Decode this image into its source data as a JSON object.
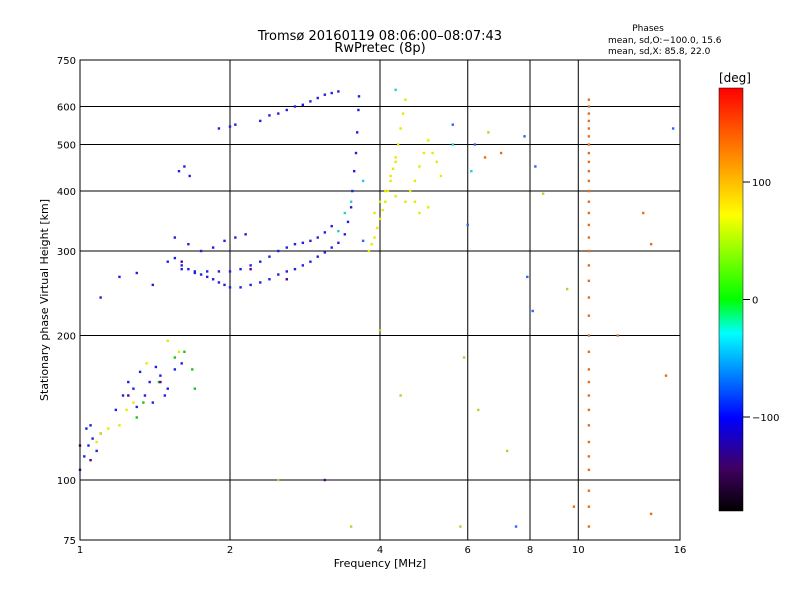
{
  "chart_data": {
    "type": "scatter",
    "title": "Tromsø 20160119 08:06:00–08:07:43",
    "subtitle": "RwPretec (8p)",
    "xlabel": "Frequency [MHz]",
    "ylabel": "Stationary phase Virtual Height [km]",
    "xscale": "log",
    "yscale": "log",
    "xlim": [
      1,
      16
    ],
    "ylim": [
      75,
      750
    ],
    "grid": true,
    "x_ticks": [
      1,
      2,
      4,
      6,
      8,
      10,
      16
    ],
    "y_ticks": [
      75,
      100,
      200,
      300,
      400,
      500,
      600,
      750
    ],
    "x_gridlines": [
      2,
      4,
      6,
      8,
      10
    ],
    "y_gridlines": [
      100,
      200,
      300,
      400,
      500,
      600
    ],
    "legend": {
      "heading": "Phases",
      "lines": [
        "mean, sd,O:−100.0, 15.6",
        "mean, sd,X:  85.8, 22.0"
      ],
      "placement": "top-right"
    },
    "colorbar": {
      "label": "[deg]",
      "range": [
        -180,
        180
      ],
      "ticks": [
        100,
        0,
        -100
      ],
      "colors": [
        "#ff0000",
        "#ff8000",
        "#ffff00",
        "#00ff00",
        "#00ffff",
        "#0000ff",
        "#400060",
        "#000000"
      ]
    },
    "series": [
      {
        "phase": -100,
        "color": "#2020e0",
        "points": [
          [
            1.0,
            105
          ],
          [
            1.02,
            112
          ],
          [
            1.04,
            118
          ],
          [
            1.06,
            122
          ],
          [
            1.08,
            115
          ],
          [
            1.1,
            125
          ],
          [
            1.03,
            128
          ],
          [
            1.05,
            130
          ],
          [
            1.18,
            140
          ],
          [
            1.22,
            150
          ],
          [
            1.25,
            160
          ],
          [
            1.28,
            155
          ],
          [
            1.32,
            168
          ],
          [
            1.35,
            150
          ],
          [
            1.38,
            160
          ],
          [
            1.42,
            172
          ],
          [
            1.45,
            165
          ],
          [
            1.5,
            155
          ],
          [
            1.55,
            170
          ],
          [
            1.6,
            175
          ],
          [
            1.3,
            142
          ],
          [
            1.4,
            145
          ],
          [
            1.48,
            150
          ],
          [
            1.5,
            285
          ],
          [
            1.55,
            290
          ],
          [
            1.6,
            280
          ],
          [
            1.65,
            275
          ],
          [
            1.7,
            270
          ],
          [
            1.75,
            268
          ],
          [
            1.8,
            265
          ],
          [
            1.85,
            262
          ],
          [
            1.9,
            258
          ],
          [
            1.95,
            255
          ],
          [
            2.0,
            252
          ],
          [
            2.1,
            252
          ],
          [
            2.2,
            255
          ],
          [
            2.3,
            258
          ],
          [
            2.4,
            262
          ],
          [
            2.5,
            268
          ],
          [
            2.6,
            272
          ],
          [
            2.7,
            275
          ],
          [
            2.8,
            280
          ],
          [
            2.9,
            285
          ],
          [
            3.0,
            292
          ],
          [
            3.1,
            298
          ],
          [
            3.2,
            305
          ],
          [
            3.3,
            312
          ],
          [
            3.4,
            325
          ],
          [
            3.45,
            345
          ],
          [
            3.5,
            370
          ],
          [
            3.52,
            400
          ],
          [
            3.55,
            440
          ],
          [
            3.58,
            480
          ],
          [
            3.6,
            530
          ],
          [
            3.62,
            590
          ],
          [
            3.63,
            630
          ],
          [
            1.55,
            320
          ],
          [
            1.65,
            310
          ],
          [
            1.75,
            300
          ],
          [
            1.85,
            305
          ],
          [
            1.95,
            315
          ],
          [
            2.05,
            320
          ],
          [
            2.15,
            325
          ],
          [
            1.6,
            275
          ],
          [
            1.7,
            272
          ],
          [
            1.8,
            272
          ],
          [
            1.9,
            272
          ],
          [
            2.0,
            272
          ],
          [
            2.1,
            275
          ],
          [
            2.2,
            280
          ],
          [
            2.3,
            285
          ],
          [
            2.4,
            292
          ],
          [
            2.5,
            300
          ],
          [
            2.6,
            305
          ],
          [
            2.7,
            310
          ],
          [
            2.8,
            312
          ],
          [
            2.9,
            315
          ],
          [
            3.0,
            320
          ],
          [
            3.1,
            328
          ],
          [
            3.2,
            338
          ],
          [
            2.3,
            560
          ],
          [
            2.4,
            575
          ],
          [
            2.5,
            580
          ],
          [
            2.6,
            590
          ],
          [
            2.7,
            600
          ],
          [
            2.8,
            605
          ],
          [
            2.9,
            615
          ],
          [
            3.0,
            625
          ],
          [
            3.1,
            635
          ],
          [
            3.2,
            640
          ],
          [
            3.3,
            645
          ],
          [
            1.9,
            540
          ],
          [
            2.0,
            545
          ],
          [
            2.05,
            550
          ],
          [
            1.58,
            440
          ],
          [
            1.62,
            450
          ],
          [
            1.66,
            430
          ],
          [
            1.2,
            265
          ],
          [
            1.3,
            270
          ],
          [
            1.4,
            255
          ],
          [
            1.1,
            240
          ]
        ]
      },
      {
        "phase": 100,
        "color": "#e8e800",
        "points": [
          [
            3.8,
            300
          ],
          [
            3.85,
            310
          ],
          [
            3.9,
            320
          ],
          [
            3.95,
            335
          ],
          [
            4.0,
            350
          ],
          [
            4.05,
            365
          ],
          [
            4.1,
            380
          ],
          [
            4.15,
            400
          ],
          [
            4.2,
            420
          ],
          [
            4.25,
            445
          ],
          [
            4.3,
            470
          ],
          [
            4.35,
            500
          ],
          [
            4.4,
            540
          ],
          [
            4.45,
            580
          ],
          [
            4.5,
            620
          ],
          [
            3.9,
            360
          ],
          [
            4.0,
            380
          ],
          [
            4.1,
            400
          ],
          [
            4.2,
            430
          ],
          [
            4.3,
            460
          ],
          [
            4.6,
            400
          ],
          [
            4.7,
            420
          ],
          [
            4.8,
            450
          ],
          [
            4.9,
            480
          ],
          [
            5.0,
            510
          ],
          [
            5.1,
            480
          ],
          [
            5.2,
            460
          ],
          [
            5.3,
            430
          ],
          [
            4.7,
            380
          ],
          [
            4.8,
            360
          ],
          [
            5.0,
            370
          ],
          [
            4.5,
            380
          ],
          [
            4.3,
            390
          ],
          [
            1.08,
            120
          ],
          [
            1.1,
            125
          ],
          [
            1.14,
            128
          ],
          [
            1.2,
            130
          ],
          [
            1.24,
            140
          ],
          [
            1.28,
            145
          ],
          [
            1.36,
            175
          ],
          [
            1.5,
            195
          ],
          [
            1.58,
            185
          ]
        ]
      },
      {
        "phase": 0,
        "color": "#20c020",
        "points": [
          [
            1.3,
            135
          ],
          [
            1.34,
            145
          ],
          [
            1.44,
            160
          ],
          [
            1.55,
            180
          ],
          [
            1.62,
            185
          ],
          [
            1.68,
            170
          ],
          [
            1.7,
            155
          ]
        ]
      },
      {
        "phase": 60,
        "color": "#20d0d0",
        "points": [
          [
            3.3,
            330
          ],
          [
            3.4,
            360
          ],
          [
            3.5,
            380
          ],
          [
            3.7,
            420
          ],
          [
            4.3,
            650
          ],
          [
            6.1,
            440
          ],
          [
            5.6,
            500
          ]
        ]
      },
      {
        "phase": 150,
        "color": "#e07020",
        "points": [
          [
            10.5,
            620
          ],
          [
            10.5,
            600
          ],
          [
            10.5,
            580
          ],
          [
            10.5,
            560
          ],
          [
            10.5,
            540
          ],
          [
            10.5,
            520
          ],
          [
            10.5,
            500
          ],
          [
            10.5,
            480
          ],
          [
            10.5,
            460
          ],
          [
            10.5,
            440
          ],
          [
            10.5,
            420
          ],
          [
            10.5,
            400
          ],
          [
            10.5,
            380
          ],
          [
            10.5,
            360
          ],
          [
            10.5,
            340
          ],
          [
            10.5,
            320
          ],
          [
            10.5,
            300
          ],
          [
            10.5,
            280
          ],
          [
            10.5,
            260
          ],
          [
            10.5,
            240
          ],
          [
            10.5,
            220
          ],
          [
            10.5,
            200
          ],
          [
            10.5,
            185
          ],
          [
            10.5,
            170
          ],
          [
            10.5,
            160
          ],
          [
            10.5,
            150
          ],
          [
            10.5,
            140
          ],
          [
            10.5,
            130
          ],
          [
            10.5,
            120
          ],
          [
            10.5,
            112
          ],
          [
            10.5,
            105
          ],
          [
            10.5,
            95
          ],
          [
            10.5,
            88
          ],
          [
            10.5,
            80
          ],
          [
            6.5,
            470
          ],
          [
            7.0,
            480
          ],
          [
            9.8,
            88
          ],
          [
            12.0,
            200
          ],
          [
            14.0,
            85
          ],
          [
            15.0,
            165
          ],
          [
            13.5,
            360
          ],
          [
            14.0,
            310
          ]
        ]
      },
      {
        "phase": -140,
        "color": "#600080",
        "points": [
          [
            1.0,
            118
          ],
          [
            1.05,
            110
          ],
          [
            1.25,
            150
          ],
          [
            1.45,
            160
          ],
          [
            1.6,
            285
          ],
          [
            2.2,
            275
          ],
          [
            2.6,
            262
          ],
          [
            3.1,
            100
          ]
        ]
      },
      {
        "phase": -80,
        "color": "#3060ff",
        "points": [
          [
            5.6,
            550
          ],
          [
            7.8,
            520
          ],
          [
            8.2,
            450
          ],
          [
            7.9,
            265
          ],
          [
            8.1,
            225
          ],
          [
            6.0,
            340
          ],
          [
            15.5,
            540
          ],
          [
            7.5,
            80
          ],
          [
            6.2,
            500
          ],
          [
            3.7,
            315
          ]
        ]
      },
      {
        "phase": 120,
        "color": "#c8c830",
        "points": [
          [
            5.9,
            180
          ],
          [
            5.8,
            80
          ],
          [
            6.3,
            140
          ],
          [
            7.2,
            115
          ],
          [
            9.5,
            250
          ],
          [
            8.5,
            395
          ],
          [
            6.6,
            530
          ],
          [
            4.4,
            150
          ],
          [
            2.5,
            100
          ],
          [
            3.5,
            80
          ],
          [
            4.0,
            205
          ]
        ]
      }
    ]
  }
}
